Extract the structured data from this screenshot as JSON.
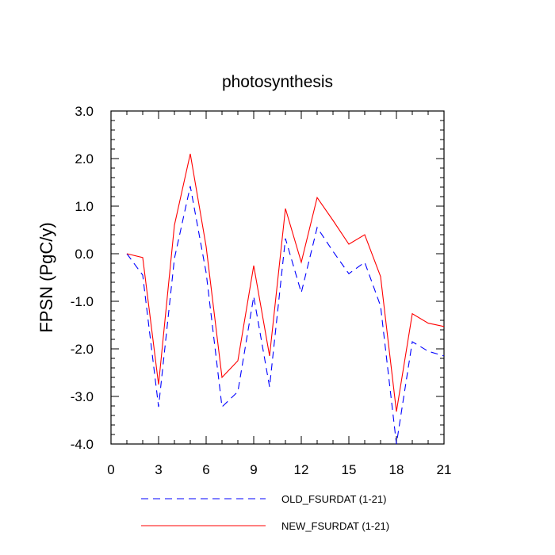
{
  "chart_data": {
    "type": "line",
    "title": "photosynthesis",
    "xlabel": "",
    "ylabel": "FPSN  (PgC/y)",
    "xlim": [
      0,
      21
    ],
    "ylim": [
      -4.0,
      3.0
    ],
    "x_ticks": [
      0,
      3,
      6,
      9,
      12,
      15,
      18,
      21
    ],
    "x_tick_labels": [
      "0",
      "3",
      "6",
      "9",
      "12",
      "15",
      "18",
      "21"
    ],
    "y_ticks": [
      -4.0,
      -3.0,
      -2.0,
      -1.0,
      0.0,
      1.0,
      2.0,
      3.0
    ],
    "y_tick_labels": [
      "-4.0",
      "-3.0",
      "-2.0",
      "-1.0",
      "0.0",
      "1.0",
      "2.0",
      "3.0"
    ],
    "grid": false,
    "legend_position": "bottom",
    "x": [
      1,
      2,
      3,
      4,
      5,
      6,
      7,
      8,
      9,
      10,
      11,
      12,
      13,
      14,
      15,
      16,
      17,
      18,
      19,
      20,
      21
    ],
    "series": [
      {
        "name": "OLD_FSURDAT (1-21)",
        "color": "#0000ff",
        "dash": "dashed",
        "values": [
          0.0,
          -0.45,
          -3.22,
          -0.1,
          1.42,
          -0.4,
          -3.22,
          -2.9,
          -0.9,
          -2.8,
          0.32,
          -0.82,
          0.55,
          0.05,
          -0.42,
          -0.18,
          -1.1,
          -4.0,
          -1.85,
          -2.05,
          -2.15
        ]
      },
      {
        "name": "NEW_FSURDAT (1-21)",
        "color": "#ff0000",
        "dash": "solid",
        "values": [
          0.0,
          -0.08,
          -2.75,
          0.6,
          2.1,
          0.15,
          -2.6,
          -2.25,
          -0.25,
          -2.15,
          0.95,
          -0.18,
          1.18,
          0.7,
          0.2,
          0.4,
          -0.48,
          -3.32,
          -1.26,
          -1.46,
          -1.53
        ]
      }
    ]
  }
}
